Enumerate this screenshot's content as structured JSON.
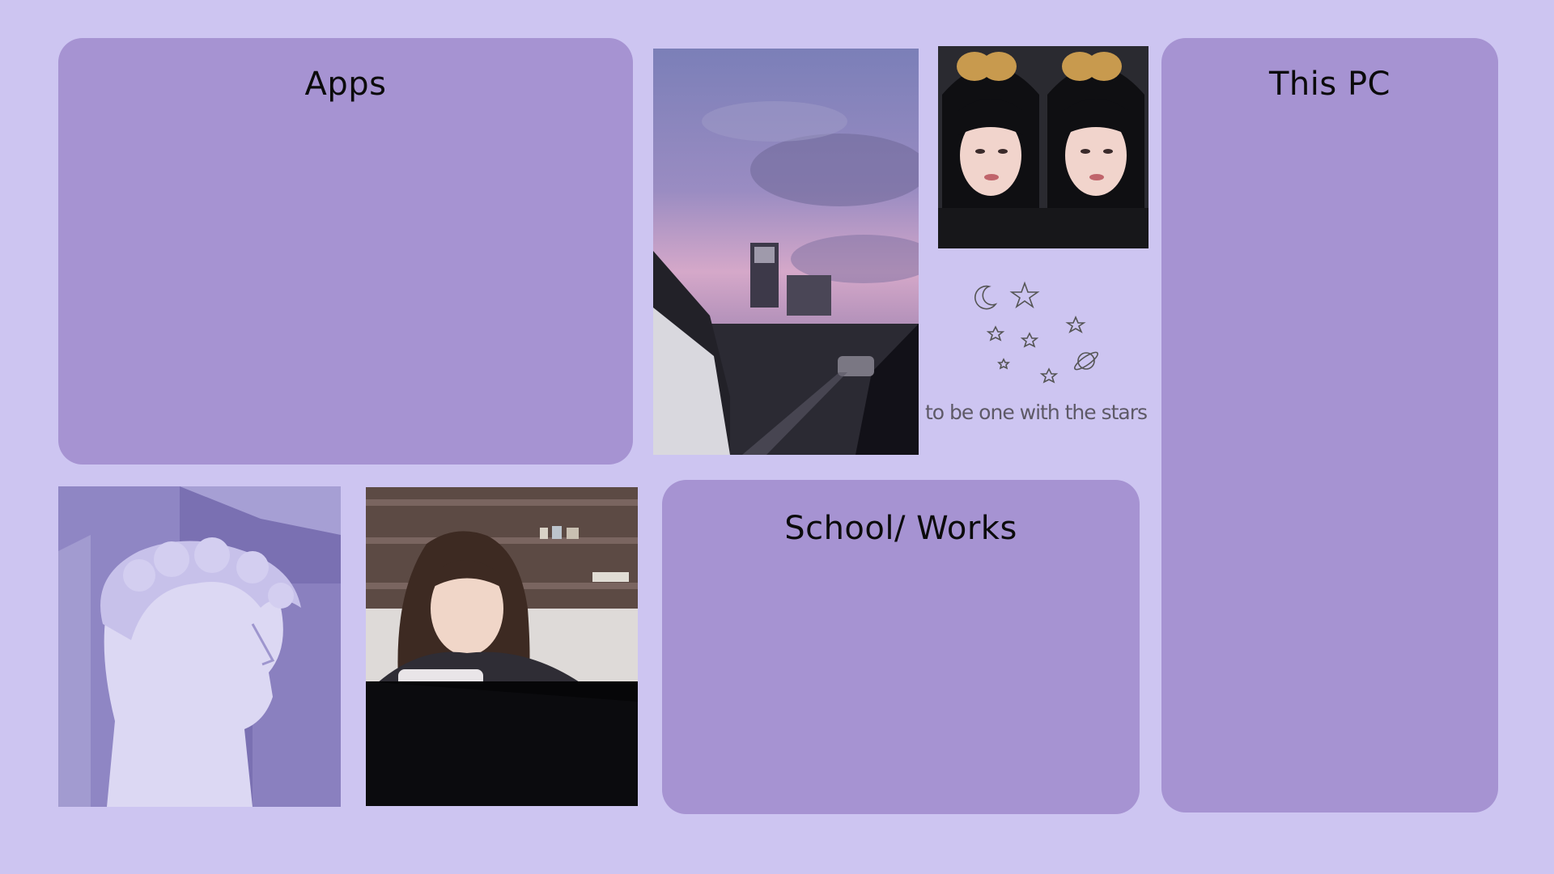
{
  "desktop": {
    "background_color": "#cdc5f1",
    "panel_color": "#a693d2"
  },
  "panels": {
    "apps": {
      "title": "Apps"
    },
    "this_pc": {
      "title": "This PC"
    },
    "school_works": {
      "title": "School/ Works"
    }
  },
  "decor": {
    "caption": "to be one with the stars",
    "icons": [
      "moon-icon",
      "star-icon",
      "planet-icon"
    ]
  },
  "photos": [
    "sunset-sky-photo",
    "twin-selfie-photo",
    "statue-photo",
    "desk-photo"
  ]
}
